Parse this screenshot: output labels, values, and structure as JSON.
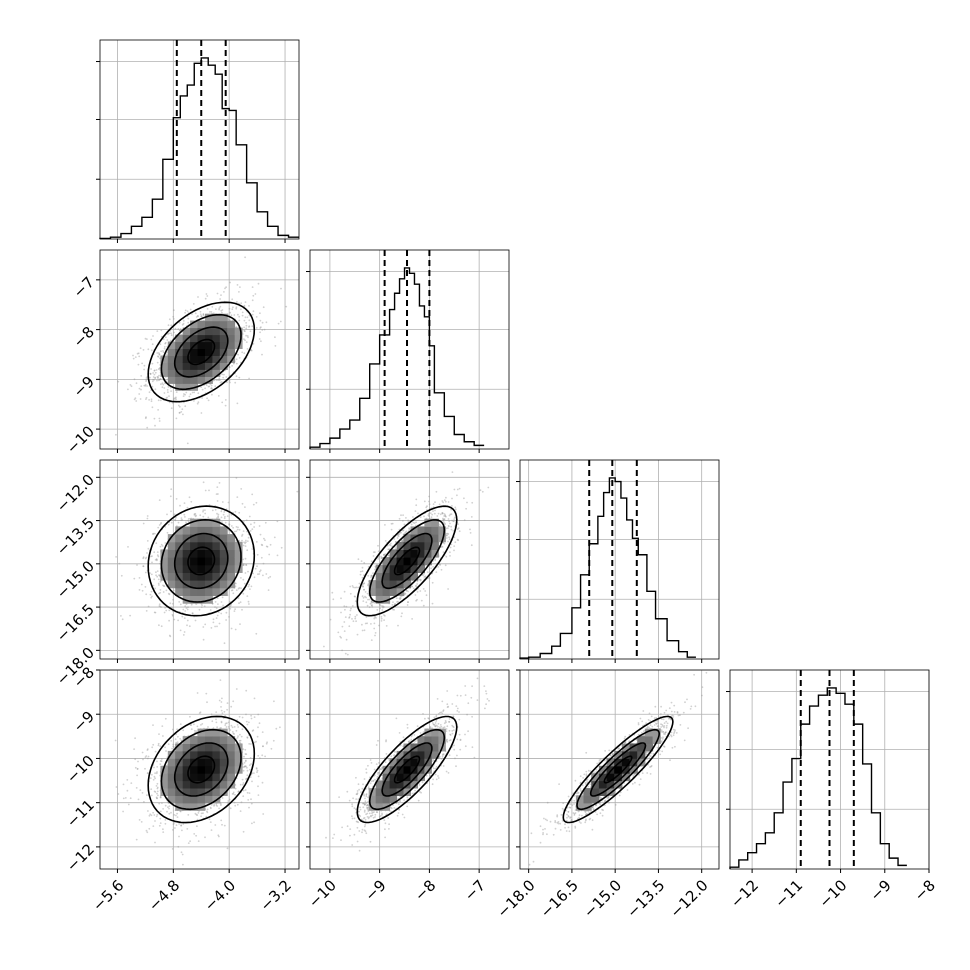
{
  "chart_data": {
    "type": "corner",
    "parameters": [
      "",
      "",
      "",
      ""
    ],
    "grid": true,
    "colors": {
      "hist": "#000000",
      "quantile": "#000000",
      "scatter": "#9a9a9a",
      "contour": "#000000",
      "grid": "#b0b0b0",
      "frame": "#000000"
    },
    "axis_ranges": [
      [
        -5.85,
        -3.0
      ],
      [
        -10.4,
        -6.4
      ],
      [
        -18.3,
        -11.4
      ],
      [
        -12.5,
        -8.0
      ]
    ],
    "ticks": [
      {
        "values": [
          -5.6,
          -4.8,
          -4.0,
          -3.2
        ],
        "labels": [
          "−5.6",
          "−4.8",
          "−4.0",
          "−3.2"
        ]
      },
      {
        "values": [
          -10,
          -9,
          -8,
          -7
        ],
        "labels": [
          "−10",
          "−9",
          "−8",
          "−7"
        ]
      },
      {
        "values": [
          -18.0,
          -16.5,
          -15.0,
          -13.5,
          -12.0
        ],
        "labels": [
          "−18.0",
          "−16.5",
          "−15.0",
          "−13.5",
          "−12.0"
        ]
      },
      {
        "values": [
          -12,
          -11,
          -10,
          -9,
          -8
        ],
        "labels": [
          "−12",
          "−11",
          "−10",
          "−9",
          "−8"
        ]
      }
    ],
    "quantiles": [
      [
        -4.75,
        -4.4,
        -4.05
      ],
      [
        -8.9,
        -8.45,
        -8.0
      ],
      [
        -15.9,
        -15.1,
        -14.25
      ],
      [
        -10.9,
        -10.25,
        -9.7
      ]
    ],
    "histograms": [
      {
        "bin_edges": [
          -5.85,
          -5.7,
          -5.55,
          -5.4,
          -5.25,
          -5.1,
          -4.95,
          -4.8,
          -4.7,
          -4.6,
          -4.5,
          -4.4,
          -4.3,
          -4.2,
          -4.1,
          -4.0,
          -3.9,
          -3.75,
          -3.6,
          -3.45,
          -3.3,
          -3.15,
          -3.0
        ],
        "counts": [
          0.3,
          1,
          3,
          7,
          12,
          22,
          44,
          67,
          79,
          85,
          97,
          100,
          96,
          91,
          72,
          71,
          52,
          31,
          15,
          7,
          2,
          1
        ]
      },
      {
        "bin_edges": [
          -10.4,
          -10.2,
          -10.0,
          -9.8,
          -9.6,
          -9.4,
          -9.2,
          -9.0,
          -8.8,
          -8.7,
          -8.6,
          -8.5,
          -8.4,
          -8.3,
          -8.2,
          -8.1,
          -8.0,
          -7.9,
          -7.7,
          -7.5,
          -7.3,
          -7.1,
          -6.9
        ],
        "counts": [
          1,
          3,
          6,
          11,
          16,
          28,
          47,
          63,
          77,
          86,
          94,
          100,
          97,
          91,
          79,
          73,
          57,
          31,
          18,
          8,
          4,
          2
        ]
      },
      {
        "bin_edges": [
          -18.3,
          -18.0,
          -17.6,
          -17.2,
          -16.9,
          -16.5,
          -16.2,
          -15.9,
          -15.6,
          -15.4,
          -15.2,
          -15.0,
          -14.8,
          -14.6,
          -14.4,
          -14.2,
          -13.9,
          -13.6,
          -13.2,
          -12.8,
          -12.5,
          -12.2
        ],
        "counts": [
          0.5,
          1,
          3,
          7,
          14,
          28,
          46,
          63,
          78,
          91,
          99,
          97,
          88,
          76,
          66,
          57,
          37,
          22,
          10,
          4,
          1
        ]
      },
      {
        "bin_edges": [
          -12.5,
          -12.3,
          -12.1,
          -11.9,
          -11.7,
          -11.5,
          -11.3,
          -11.1,
          -10.9,
          -10.7,
          -10.5,
          -10.3,
          -10.1,
          -9.9,
          -9.7,
          -9.5,
          -9.3,
          -9.1,
          -8.9,
          -8.7,
          -8.5
        ],
        "counts": [
          1,
          5,
          9,
          14,
          20,
          31,
          48,
          61,
          80,
          90,
          96,
          100,
          97,
          91,
          80,
          58,
          31,
          14,
          6,
          2
        ]
      }
    ],
    "pairs": [
      {
        "row": 1,
        "col": 0,
        "center": [
          -4.4,
          -8.45
        ],
        "sigma": [
          0.38,
          0.5
        ],
        "rho": 0.45
      },
      {
        "row": 2,
        "col": 0,
        "center": [
          -4.4,
          -14.9
        ],
        "sigma": [
          0.38,
          0.95
        ],
        "rho": 0.1
      },
      {
        "row": 2,
        "col": 1,
        "center": [
          -8.45,
          -14.9
        ],
        "sigma": [
          0.5,
          0.95
        ],
        "rho": 0.75
      },
      {
        "row": 3,
        "col": 0,
        "center": [
          -4.4,
          -10.25
        ],
        "sigma": [
          0.38,
          0.6
        ],
        "rho": 0.3
      },
      {
        "row": 3,
        "col": 1,
        "center": [
          -8.45,
          -10.25
        ],
        "sigma": [
          0.5,
          0.6
        ],
        "rho": 0.8
      },
      {
        "row": 3,
        "col": 2,
        "center": [
          -14.9,
          -10.25
        ],
        "sigma": [
          0.95,
          0.6
        ],
        "rho": 0.9
      }
    ]
  }
}
